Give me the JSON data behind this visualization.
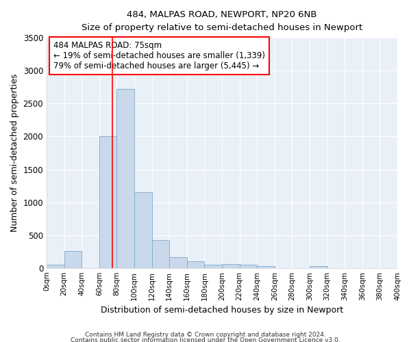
{
  "title": "484, MALPAS ROAD, NEWPORT, NP20 6NB",
  "subtitle": "Size of property relative to semi-detached houses in Newport",
  "xlabel": "Distribution of semi-detached houses by size in Newport",
  "ylabel": "Number of semi-detached properties",
  "bin_edges": [
    0,
    20,
    40,
    60,
    80,
    100,
    120,
    140,
    160,
    180,
    200,
    220,
    240,
    260,
    280,
    300,
    320,
    340,
    360,
    380,
    400
  ],
  "bin_values": [
    50,
    260,
    0,
    2000,
    2720,
    1150,
    420,
    160,
    100,
    55,
    60,
    50,
    30,
    0,
    0,
    30,
    0,
    0,
    0,
    0
  ],
  "bar_color": "#c9d9eb",
  "bar_edgecolor": "#7aaac8",
  "property_size": 75,
  "property_line_color": "red",
  "annotation_text": "484 MALPAS ROAD: 75sqm\n← 19% of semi-detached houses are smaller (1,339)\n79% of semi-detached houses are larger (5,445) →",
  "annotation_box_color": "red",
  "ylim": [
    0,
    3500
  ],
  "xlim": [
    0,
    400
  ],
  "tick_labels": [
    "0sqm",
    "20sqm",
    "40sqm",
    "60sqm",
    "80sqm",
    "100sqm",
    "120sqm",
    "140sqm",
    "160sqm",
    "180sqm",
    "200sqm",
    "220sqm",
    "240sqm",
    "260sqm",
    "280sqm",
    "300sqm",
    "320sqm",
    "340sqm",
    "360sqm",
    "380sqm",
    "400sqm"
  ],
  "background_color": "#ffffff",
  "plot_background_color": "#eaf0f8",
  "grid_color": "#ffffff",
  "footer1": "Contains HM Land Registry data © Crown copyright and database right 2024.",
  "footer2": "Contains public sector information licensed under the Open Government Licence v3.0."
}
